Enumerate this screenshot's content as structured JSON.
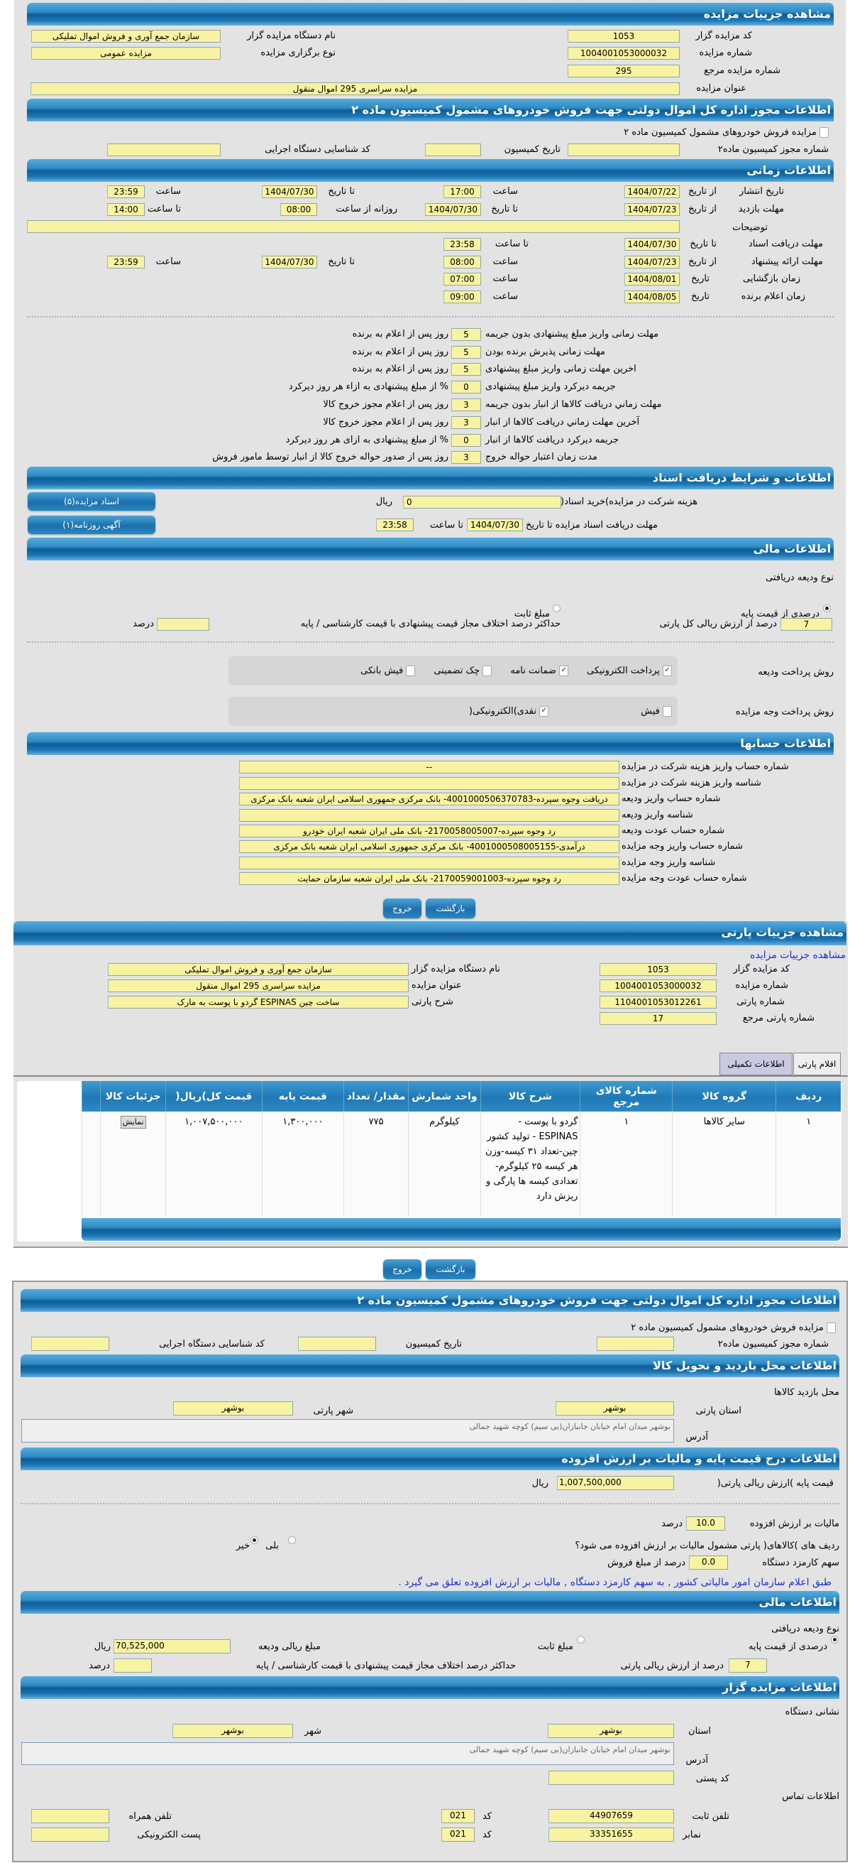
{
  "auction": {
    "title": "مشاهده جزییات مزایده",
    "code_label": "کد مزایده گزار",
    "code": "1053",
    "org_label": "نام دستگاه مزایده گزار",
    "org": "سازمان جمع آوری و فروش اموال تملیکی",
    "number_label": "شماره مزایده",
    "number": "1004001053000032",
    "type_label": "نوع برگزاری مزایده",
    "type": "مزایده عمومی",
    "ref_label": "شماره مزایده مرجع",
    "ref": "295",
    "subject_label": "عنوان مزایده",
    "subject": "مزایده سراسری 295 اموال منقول"
  },
  "permit": {
    "title": "اطلاعات مجوز اداره کل اموال دولتی جهت فروش خودروهای مشمول کمیسیون ماده ۲",
    "checkbox_label": "مزایده فروش خودروهای مشمول کمیسیون ماده ۲",
    "permit_no_label": "شماره مجوز کمیسیون ماده۲",
    "date_label": "تاریخ کمیسیون",
    "exec_code_label": "کد شناسایی دستگاه اجرایی"
  },
  "timing": {
    "title": "اطلاعات زمانی",
    "from_date": "از تاریخ",
    "to_date": "تا تاریخ",
    "date": "تاریخ",
    "hour": "ساعت",
    "to_hour": "تا ساعت",
    "daily_from": "روزانه از ساعت",
    "publish_label": "تاریخ انتشار",
    "publish_from": "1404/07/22",
    "publish_from_time": "17:00",
    "publish_to": "1404/07/30",
    "publish_to_time": "23:59",
    "visit_label": "مهلت بازدید",
    "visit_from": "1404/07/23",
    "visit_to": "1404/07/30",
    "visit_daily_from": "08:00",
    "visit_daily_to": "14:00",
    "desc_label": "توضیحات",
    "desc": "",
    "docs_label": "مهلت دریافت اسناد",
    "docs_to": "1404/07/30",
    "docs_to_time": "23:58",
    "offer_label": "مهلت ارائه پیشنهاد",
    "offer_from": "1404/07/23",
    "offer_from_time": "08:00",
    "offer_to": "1404/07/30",
    "offer_to_time": "23:59",
    "open_label": "زمان بازگشایی",
    "open_date": "1404/08/01",
    "open_time": "07:00",
    "winner_label": "زمان اعلام برنده",
    "winner_date": "1404/08/05",
    "winner_time": "09:00"
  },
  "deadlines": [
    {
      "label": "مهلت زمانی واریز مبلغ پیشنهادی بدون جریمه",
      "value": "5",
      "suffix": "روز پس از اعلام به برنده"
    },
    {
      "label": "مهلت زمانی پذیرش برنده بودن",
      "value": "5",
      "suffix": "روز پس از اعلام به برنده"
    },
    {
      "label": "اخرین مهلت زمانی واریز مبلغ پیشنهادی",
      "value": "5",
      "suffix": "روز پس از اعلام به برنده"
    },
    {
      "label": "جریمه دیرکرد واریز مبلغ پیشنهادی",
      "value": "0",
      "suffix": "% از مبلغ پیشنهادی به ازاء هر روز دیرکرد"
    },
    {
      "label": "مهلت زماني دریافت کالاها از انبار بدون جریمه",
      "value": "3",
      "suffix": "روز پس از اعلام مجوز خروج کالا"
    },
    {
      "label": "آخرین مهلت زماني دریافت کالاها از انبار",
      "value": "3",
      "suffix": "روز پس از اعلام مجوز خروج کالا"
    },
    {
      "label": "جریمه دیرکرد دریافت کالاها از انبار",
      "value": "0",
      "suffix": "% از مبلغ پیشنهادی به ازای هر روز دیرکرد"
    },
    {
      "label": "مدت زمان اعتبار حواله خروج",
      "value": "3",
      "suffix": "روز پس از صدور حواله خروج کالا از انبار توسط مامور فروش"
    }
  ],
  "docs": {
    "title": "اطلاعات و شرایط دریافت اسناد",
    "fee_label": "هزینه شرکت در مزایده)خرید اسناد(",
    "fee": "0",
    "rial": "ریال",
    "deadline_label": "مهلت دریافت اسناد مزایده تا تاریخ",
    "deadline_date": "1404/07/30",
    "to_hour": "تا ساعت",
    "deadline_time": "23:58",
    "docs_button": "اسناد مزایده(۵)",
    "ad_button": "آگهی روزنامه(۱)"
  },
  "finance": {
    "title": "اطلاعات مالی",
    "deposit_type_label": "نوع ودیعه دریافتی",
    "percent_option": "درصدی از قیمت پایه",
    "fixed_option": "مبلغ ثابت",
    "percent_value": "7",
    "percent_suffix": "درصد از ارزش ریالی کل پارتی",
    "max_diff_label": "حداکثر درصد اختلاف مجاز قیمت پیشنهادی با قیمت کارشناسی / پایه",
    "max_diff": "",
    "percent_unit": "درصد",
    "deposit_pay_label": "روش پرداخت ودیعه",
    "deposit_methods": [
      {
        "label": "پرداخت الکترونیکی",
        "checked": true
      },
      {
        "label": "ضمانت نامه",
        "checked": true
      },
      {
        "label": "چک تضمینی",
        "checked": false
      },
      {
        "label": "فیش بانکی",
        "checked": false
      }
    ],
    "auction_pay_label": "روش پرداخت وجه مزایده",
    "auction_methods": [
      {
        "label": "فیش",
        "checked": false
      },
      {
        "label": "نقدی)الکترونیکی(",
        "checked": true
      }
    ]
  },
  "accounts": {
    "title": "اطلاعات حسابها",
    "rows": [
      {
        "label": "شماره حساب واریز هزینه شرکت در مزایده",
        "value": "--"
      },
      {
        "label": "شناسه واریز هزینه شرکت در مزایده",
        "value": ""
      },
      {
        "label": "شماره حساب واریز ودیعه",
        "value": "دریافت وجوه سپرده-4001000506370783- بانک مرکزی جمهوری اسلامی ایران شعبه بانک مرکزی"
      },
      {
        "label": "شناسه واریز ودیعه",
        "value": ""
      },
      {
        "label": "شماره حساب عودت ودیعه",
        "value": "رد وجوه سپرده-2170058005007- بانک ملی ایران شعبه ایران خودرو"
      },
      {
        "label": "شماره حساب واریز وجه مزایده",
        "value": "درآمدی-4001000508005155- بانک مرکزی جمهوری اسلامی ایران شعبه بانک مرکزی"
      },
      {
        "label": "شناسه واریز وجه مزایده",
        "value": ""
      },
      {
        "label": "شماره حساب عودت وجه مزایده",
        "value": "رد وجوه سپرده-2170059001003- بانک ملی ایران شعبه سازمان حمایت"
      }
    ]
  },
  "actions": {
    "back": "بازگشت",
    "exit": "خروج"
  },
  "lot": {
    "title": "مشاهده جزییات پارتی",
    "link": "مشاهده جزییات مزایده",
    "code_label": "کد مزایده گزار",
    "code": "1053",
    "org_label": "نام دستگاه مزایده گزار",
    "org": "سازمان جمع آوری و فروش اموال تملیکی",
    "number_label": "شماره مزایده",
    "number": "1004001053000032",
    "subject_label": "عنوان مزایده",
    "subject": "مزایده سراسری 295 اموال منقول",
    "lot_no_label": "شماره پارتی",
    "lot_no": "1104001053012261",
    "lot_desc_label": "شرح پارتی",
    "lot_desc": "ساخت چین ESPINAS گردو با پوست به مارک",
    "lot_ref_label": "شماره پارتی مرجع",
    "lot_ref": "17",
    "tab_items": "اقلام پارتی",
    "tab_extra": "اطلاعات تکمیلی"
  },
  "table": {
    "headers": [
      "ردیف",
      "گروه کالا",
      "شماره کالای مرجع",
      "شرح کالا",
      "واحد شمارش",
      "مقدار/ تعداد",
      "قیمت پایه",
      "قیمت کل)ریال(",
      "جزئیات کالا"
    ],
    "rows": [
      {
        "row": "۱",
        "group": "سایر کالاها",
        "ref": "۱",
        "desc": "گردو با پوست - ESPINAS - تولید کشور چین-تعداد ۳۱ کیسه-وزن هر کیسه ۲۵ کیلوگرم-تعدادی کیسه ها پارگی و ریزش دارد",
        "unit": "کیلوگرم",
        "qty": "۷۷۵",
        "base": "۱,۳۰۰,۰۰۰",
        "total": "۱,۰۰۷,۵۰۰,۰۰۰",
        "details": "نمایش"
      }
    ]
  },
  "location": {
    "title": "اطلاعات محل بازدید و تحویل کالا",
    "place_label": "محل بازدید کالاها",
    "province_label": "استان پارتی",
    "province": "بوشهر",
    "city_label": "شهر پارتی",
    "city": "بوشهر",
    "address_label": "آدرس",
    "address": "بوشهر میدان امام خیابان جانبازان(بی سیم) کوچه شهید جمالی"
  },
  "pricing": {
    "title": "اطلاعات درج قیمت پایه و مالیات بر ارزش افزوده",
    "base_label": "قیمت پایه )ارزش ریالی پارتی(",
    "base": "1,007,500,000",
    "rial": "ریال",
    "vat_label": "مالیات بر ارزش افزوده",
    "vat": "10.0",
    "percent": "درصد",
    "vat_q": "ردیف های )کالاهای( پارتی مشمول مالیات بر ارزش افزوده می شود؟",
    "yes": "بلی",
    "no": "خیر",
    "fee_label": "سهم کارمزد دستگاه",
    "fee": "0.0",
    "fee_suffix": "درصد از مبلغ فروش",
    "note": "طبق اعلام سازمان امور مالیاتی کشور , به سهم کارمزد دستگاه , مالیات بر ارزش افزوده تعلق می گیرد ."
  },
  "finance2": {
    "title": "اطلاعات مالی",
    "deposit_type_label": "نوع ودیعه دریافتی",
    "percent_option": "درصدی از قیمت پایه",
    "fixed_option": "مبلغ ثابت",
    "amount_label": "مبلغ ریالی ودیعه",
    "amount": "70,525,000",
    "rial": "ریال",
    "percent_value": "7",
    "percent_suffix": "درصد از ارزش ریالی پارتی",
    "max_diff_label": "حداکثر درصد اختلاف مجاز قیمت پیشنهادی با قیمت کارشناسی / پایه",
    "max_diff": "",
    "percent_unit": "درصد"
  },
  "auctioneer": {
    "title": "اطلاعات مزایده گزار",
    "address_title": "نشانی دستگاه",
    "province_label": "استان",
    "province": "بوشهر",
    "city_label": "شهر",
    "city": "بوشهر",
    "address_label": "آدرس",
    "address": "بوشهر میدان امام خیابان جانبازان(بی سیم) کوچه شهید جمالی",
    "postal_label": "کد پستی",
    "postal": "",
    "contact_title": "اطلاعات تماس",
    "phone_label": "تلفن ثابت",
    "phone": "44907659",
    "code_label": "کد",
    "phone_code": "021",
    "mobile_label": "تلفن همراه",
    "mobile": "",
    "fax_label": "نمابر",
    "fax": "33351655",
    "fax_code": "021",
    "email_label": "پست الکترونیکی",
    "email": ""
  },
  "colors": {
    "header_blue": "#1d77b5",
    "field_yellow": "#f7f3a2",
    "panel_gray": "#e3e3e3",
    "link_blue": "#1a2fd0"
  }
}
